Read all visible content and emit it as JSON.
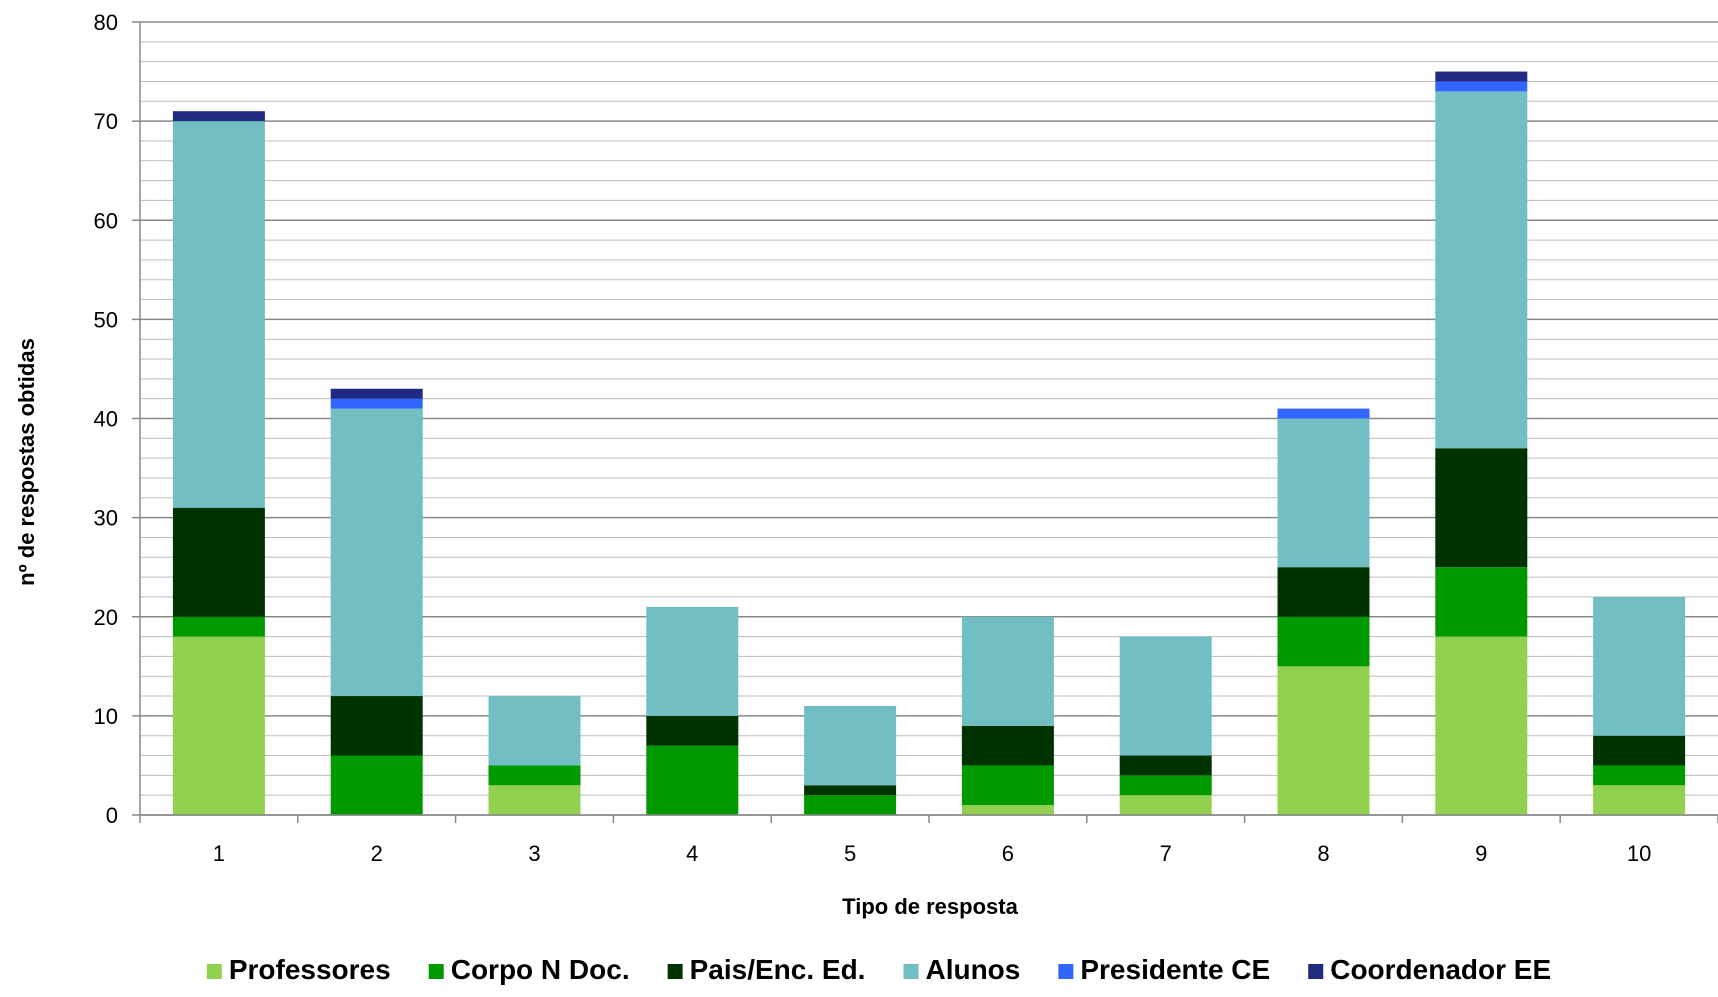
{
  "chart_data": {
    "type": "bar",
    "stacked": true,
    "title": "",
    "xlabel": "Tipo de resposta",
    "ylabel": "nº de respostas obtidas",
    "ylim": [
      0,
      80
    ],
    "yticks": [
      0,
      10,
      20,
      30,
      40,
      50,
      60,
      70,
      80
    ],
    "grid": true,
    "legend_position": "bottom",
    "categories": [
      "1",
      "2",
      "3",
      "4",
      "5",
      "6",
      "7",
      "8",
      "9",
      "10"
    ],
    "series": [
      {
        "name": "Professores",
        "color": "#92D050",
        "values": [
          18,
          0,
          3,
          0,
          0,
          1,
          2,
          15,
          18,
          3
        ]
      },
      {
        "name": "Corpo N Doc.",
        "color": "#009900",
        "values": [
          2,
          6,
          2,
          7,
          2,
          4,
          2,
          5,
          7,
          2
        ]
      },
      {
        "name": "Pais/Enc. Ed.",
        "color": "#003300",
        "values": [
          11,
          6,
          0,
          3,
          1,
          4,
          2,
          5,
          12,
          3
        ]
      },
      {
        "name": "Alunos",
        "color": "#72BFC3",
        "values": [
          39,
          29,
          7,
          11,
          8,
          11,
          12,
          15,
          36,
          14
        ]
      },
      {
        "name": "Presidente CE",
        "color": "#3366FF",
        "values": [
          0,
          1,
          0,
          0,
          0,
          0,
          0,
          1,
          1,
          0
        ]
      },
      {
        "name": "Coordenador EE",
        "color": "#1F2A80",
        "values": [
          1,
          1,
          0,
          0,
          0,
          0,
          0,
          0,
          1,
          0
        ]
      }
    ]
  }
}
